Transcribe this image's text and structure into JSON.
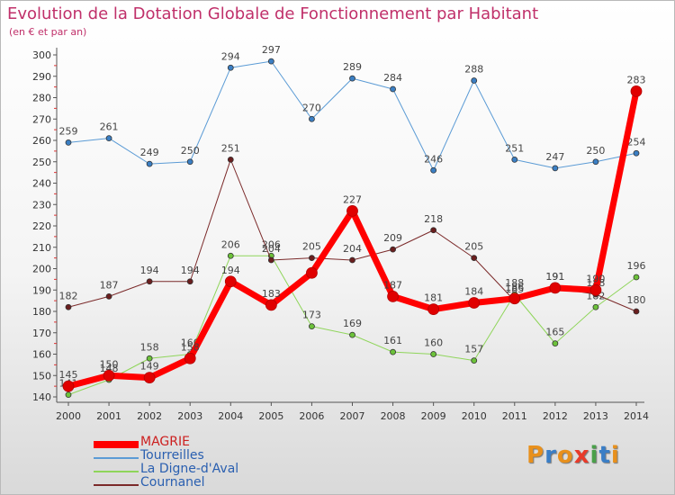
{
  "title": "Evolution de la Dotation Globale de Fonctionnement par Habitant",
  "subtitle": "(en € et par an)",
  "logo": {
    "text": "Proxiti",
    "letters": [
      "P",
      "r",
      "o",
      "x",
      "i",
      "t",
      "i"
    ],
    "colors": [
      "#e8901c",
      "#3a7ec6",
      "#e8901c",
      "#e83a2a",
      "#4aa04a",
      "#3a7ec6",
      "#e8901c"
    ]
  },
  "chart_data": {
    "type": "line",
    "title": "Evolution de la Dotation Globale de Fonctionnement par Habitant",
    "subtitle": "(en € et par an)",
    "x": [
      "2000",
      "2001",
      "2002",
      "2003",
      "2004",
      "2005",
      "2006",
      "2007",
      "2008",
      "2009",
      "2010",
      "2011",
      "2012",
      "2013",
      "2014"
    ],
    "yticks": [
      140,
      150,
      160,
      170,
      180,
      190,
      200,
      210,
      220,
      230,
      240,
      250,
      260,
      270,
      280,
      290,
      300
    ],
    "ylim": [
      136,
      300
    ],
    "grid": false,
    "legend_position": "bottom-left",
    "series": [
      {
        "name": "Tourreilles",
        "color": "#5b9bd5",
        "marker": "#3b7fc4",
        "width": 1,
        "values": [
          259,
          261,
          249,
          250,
          294,
          297,
          270,
          289,
          284,
          246,
          288,
          251,
          247,
          250,
          254
        ],
        "labels": [
          "259",
          "261",
          "249",
          "250",
          "294",
          "297",
          "270",
          "289",
          "284",
          "246",
          "288",
          "251",
          "247",
          "250",
          "254"
        ]
      },
      {
        "name": "La Digne-d'Aval",
        "color": "#8fd55a",
        "marker": "#6cc23a",
        "width": 1,
        "values": [
          141,
          148,
          158,
          160,
          206,
          206,
          173,
          169,
          161,
          160,
          157,
          188,
          165,
          182,
          196
        ],
        "labels": [
          "141",
          "148",
          "158",
          "160",
          "206",
          "206",
          "173",
          "169",
          "161",
          "160",
          "157",
          "188",
          "165",
          "182",
          "196"
        ]
      },
      {
        "name": "Cournanel",
        "color": "#7b2a2a",
        "marker": "#6a1e1e",
        "width": 1,
        "values": [
          182,
          187,
          194,
          194,
          251,
          204,
          205,
          204,
          209,
          218,
          205,
          185,
          191,
          188,
          180
        ],
        "labels": [
          "182",
          "187",
          "194",
          "194",
          "251",
          "204",
          "205",
          "204",
          "209",
          "218",
          "205",
          "185",
          "191",
          "188",
          "180"
        ]
      },
      {
        "name": "MAGRIE",
        "color": "#ff0000",
        "marker": "#e00000",
        "width": 7,
        "values": [
          145,
          150,
          149,
          158,
          194,
          183,
          198,
          227,
          187,
          181,
          184,
          186,
          191,
          190,
          283
        ],
        "labels": [
          "145",
          "150",
          "149",
          "158",
          "194",
          "183",
          "",
          "227",
          "187",
          "181",
          "184",
          "186",
          "191",
          "190",
          "283"
        ]
      }
    ],
    "legend": [
      {
        "name": "MAGRIE",
        "color": "#ff0000",
        "thick": true
      },
      {
        "name": "Tourreilles",
        "color": "#5b9bd5",
        "thick": false
      },
      {
        "name": "La Digne-d'Aval",
        "color": "#8fd55a",
        "thick": false
      },
      {
        "name": "Cournanel",
        "color": "#7b2a2a",
        "thick": false
      }
    ]
  }
}
